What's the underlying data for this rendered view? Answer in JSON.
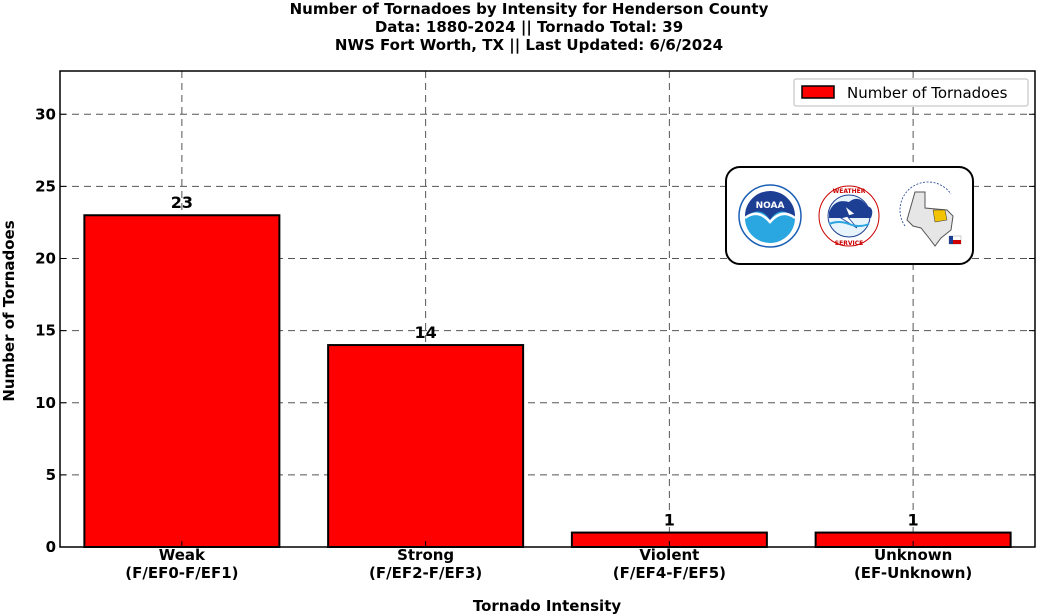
{
  "chart_data": {
    "type": "bar",
    "title_lines": [
      "Number of Tornadoes by Intensity for Henderson County",
      "Data: 1880-2024 || Tornado Total: 39",
      "NWS Fort Worth, TX || Last Updated: 6/6/2024"
    ],
    "categories": [
      [
        "Weak",
        "(F/EF0-F/EF1)"
      ],
      [
        "Strong",
        "(F/EF2-F/EF3)"
      ],
      [
        "Violent",
        "(F/EF4-F/EF5)"
      ],
      [
        "Unknown",
        "(EF-Unknown)"
      ]
    ],
    "series": [
      {
        "name": "Number of Tornadoes",
        "values": [
          23,
          14,
          1,
          1
        ],
        "color": "#ff0000"
      }
    ],
    "xlabel": "Tornado Intensity",
    "ylabel": "Number of Tornadoes",
    "ylim": [
      0,
      33
    ],
    "yticks": [
      0,
      5,
      10,
      15,
      20,
      25,
      30
    ],
    "grid": true,
    "legend_position": "top-right",
    "logos": [
      "noaa-logo",
      "national-weather-service-logo",
      "nws-fort-worth-logo"
    ]
  }
}
